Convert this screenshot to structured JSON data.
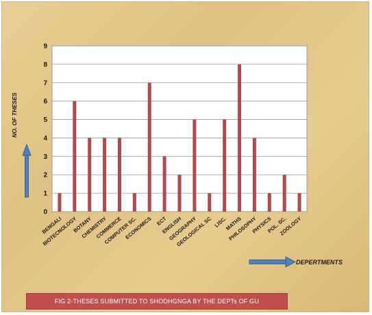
{
  "chart_data": {
    "type": "bar",
    "categories": [
      "BENGALI",
      "BIOTECNOLOGY",
      "BOTANY",
      "CHEMISTRY",
      "COMMERCE",
      "COMPUTER SC.",
      "ECONOMICS",
      "ECT",
      "ENGLISH",
      "GEOGRAPHY",
      "GEOLOGICAL SC",
      "LISC.",
      "MATHS",
      "PHILOSOPHY",
      "PHYSICS",
      "POL. SC.",
      "ZOOLOGY"
    ],
    "values": [
      1,
      6,
      4,
      4,
      4,
      1,
      7,
      3,
      2,
      5,
      1,
      5,
      8,
      4,
      1,
      2,
      1
    ],
    "ylabel": "NO. OF  THESES",
    "xlabel": "DEPERTMENTS",
    "ylim": [
      0,
      9
    ],
    "yticks": [
      0,
      1,
      2,
      3,
      4,
      5,
      6,
      7,
      8,
      9
    ],
    "grid": true,
    "colors": {
      "bar": "#b04a4a",
      "arrow": "#4f81bd"
    }
  },
  "caption": "FIG 2-THESES SUBMITTED TO SHODHGNGA  BY THE DEPTs OF GU"
}
